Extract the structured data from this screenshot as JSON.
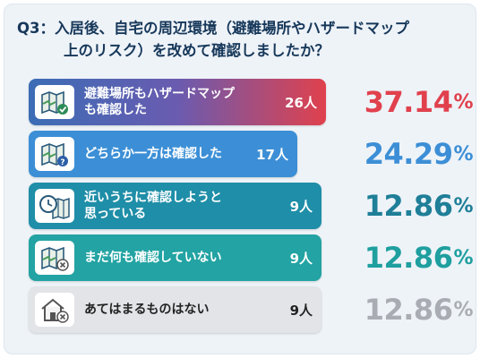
{
  "title": {
    "line1": "Q3：入居後、自宅の周辺環境（避難場所やハザードマップ",
    "line2": "上のリスク）を改めて確認しましたか？"
  },
  "chart_data": {
    "type": "bar",
    "categories": [
      "避難場所もハザードマップも確認した",
      "どちらか一方は確認した",
      "近いうちに確認しようと思っている",
      "まだ何も確認していない",
      "あてはまるものはない"
    ],
    "values": [
      37.14,
      24.29,
      12.86,
      12.86,
      12.86
    ],
    "counts": [
      "26人",
      "17人",
      "9人",
      "9人",
      "9人"
    ],
    "percent_labels": [
      "37.14",
      "24.29",
      "12.86",
      "12.86",
      "12.86"
    ],
    "unit": "%"
  },
  "rows": [
    {
      "label": "避難場所もハザードマップ\nも確認した",
      "icon": "map-check-icon",
      "bar_color": "#3b6db5",
      "bar_color2": "#e0414d",
      "pct_color": "#e0414d"
    },
    {
      "label": "どちらか一方は確認した",
      "icon": "map-question-icon",
      "bar_color": "#3c8fd6",
      "bar_color2": "#3c8fd6",
      "pct_color": "#3c8fd6"
    },
    {
      "label": "近いうちに確認しようと\n思っている",
      "icon": "clock-map-icon",
      "bar_color": "#1f8ea8",
      "bar_color2": "#1f8ea8",
      "pct_color": "#1f7f98"
    },
    {
      "label": "まだ何も確認していない",
      "icon": "map-cross-icon",
      "bar_color": "#23a3a3",
      "bar_color2": "#23a3a3",
      "pct_color": "#1f9f9f"
    },
    {
      "label": "あてはまるものはない",
      "icon": "house-cross-icon",
      "bar_color": "#e2e4e8",
      "bar_color2": "#e2e4e8",
      "pct_color": "#a9adb3"
    }
  ]
}
